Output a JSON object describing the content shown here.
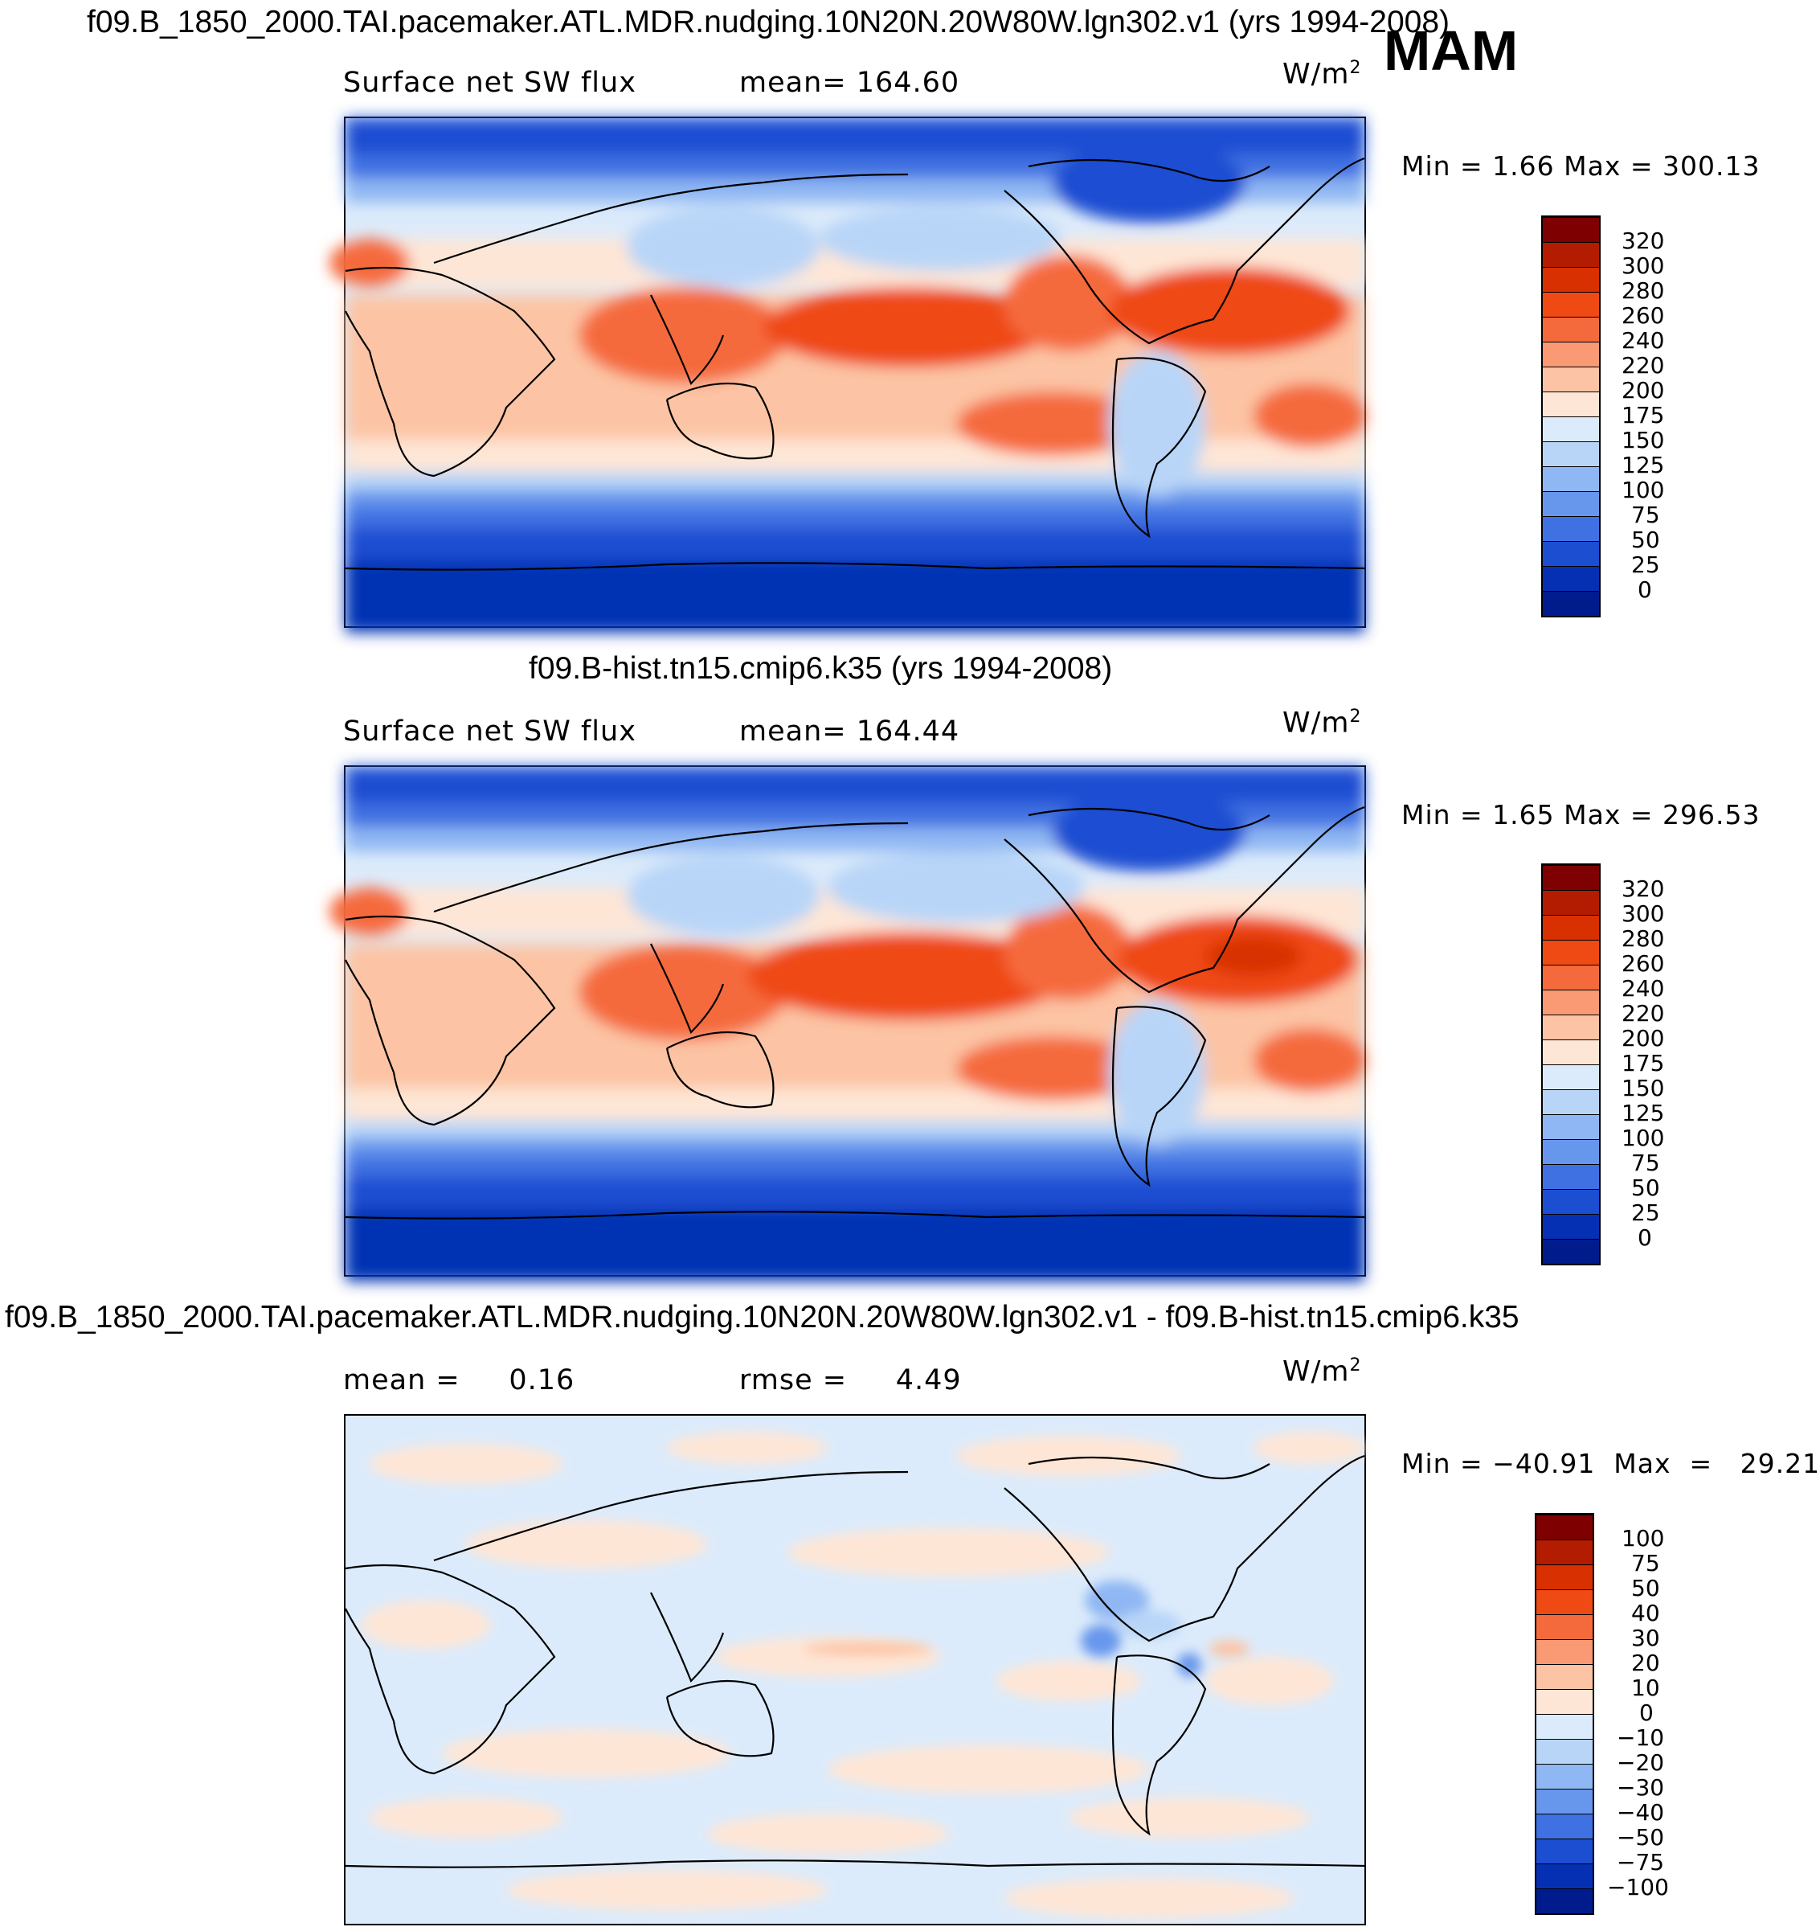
{
  "season": "MAM",
  "panels": [
    {
      "id": "top",
      "title": "f09.B_1850_2000.TAI.pacemaker.ATL.MDR.nudging.10N20N.20W80W.lgn302.v1 (yrs 1994-2008)",
      "left_label": "Surface net SW flux",
      "center_label": "mean= 164.60",
      "unit_base": "W/m",
      "unit_exp": "2",
      "minmax": "Min =    1.66  Max  =  300.13",
      "colorbar": {
        "labels": [
          "320",
          "300",
          "280",
          "260",
          "240",
          "220",
          "200",
          "175",
          "150",
          "125",
          "100",
          "75",
          "50",
          "25",
          "0"
        ],
        "colors": [
          "#7f0000",
          "#b31c00",
          "#d83000",
          "#ef4a14",
          "#f56a3c",
          "#f99a74",
          "#fcc4a4",
          "#fee6d6",
          "#dcebfb",
          "#b8d5f8",
          "#8fb7f3",
          "#6797ec",
          "#3f71e2",
          "#1c4ed2",
          "#0630b4",
          "#001c8c"
        ]
      }
    },
    {
      "id": "middle",
      "title": "f09.B-hist.tn15.cmip6.k35 (yrs 1994-2008)",
      "left_label": "Surface net SW flux",
      "center_label": "mean= 164.44",
      "unit_base": "W/m",
      "unit_exp": "2",
      "minmax": "Min =    1.65  Max  =  296.53",
      "colorbar": {
        "labels": [
          "320",
          "300",
          "280",
          "260",
          "240",
          "220",
          "200",
          "175",
          "150",
          "125",
          "100",
          "75",
          "50",
          "25",
          "0"
        ],
        "colors": [
          "#7f0000",
          "#b31c00",
          "#d83000",
          "#ef4a14",
          "#f56a3c",
          "#f99a74",
          "#fcc4a4",
          "#fee6d6",
          "#dcebfb",
          "#b8d5f8",
          "#8fb7f3",
          "#6797ec",
          "#3f71e2",
          "#1c4ed2",
          "#0630b4",
          "#001c8c"
        ]
      }
    },
    {
      "id": "bottom",
      "title": "f09.B_1850_2000.TAI.pacemaker.ATL.MDR.nudging.10N20N.20W80W.lgn302.v1 - f09.B-hist.tn15.cmip6.k35",
      "left_label": "mean =     0.16",
      "center_label": "rmse =     4.49",
      "unit_base": "W/m",
      "unit_exp": "2",
      "minmax": "Min = −40.91  Max  =   29.21",
      "colorbar": {
        "labels": [
          "100",
          "75",
          "50",
          "40",
          "30",
          "20",
          "10",
          "0",
          "−10",
          "−20",
          "−30",
          "−40",
          "−50",
          "−75",
          "−100"
        ],
        "colors": [
          "#7f0000",
          "#b31c00",
          "#d83000",
          "#ef4a14",
          "#f56a3c",
          "#f99a74",
          "#fcc4a4",
          "#fee6d6",
          "#dcebfb",
          "#b8d5f8",
          "#8fb7f3",
          "#6797ec",
          "#3f71e2",
          "#1c4ed2",
          "#0630b4",
          "#001c8c"
        ]
      }
    }
  ]
}
